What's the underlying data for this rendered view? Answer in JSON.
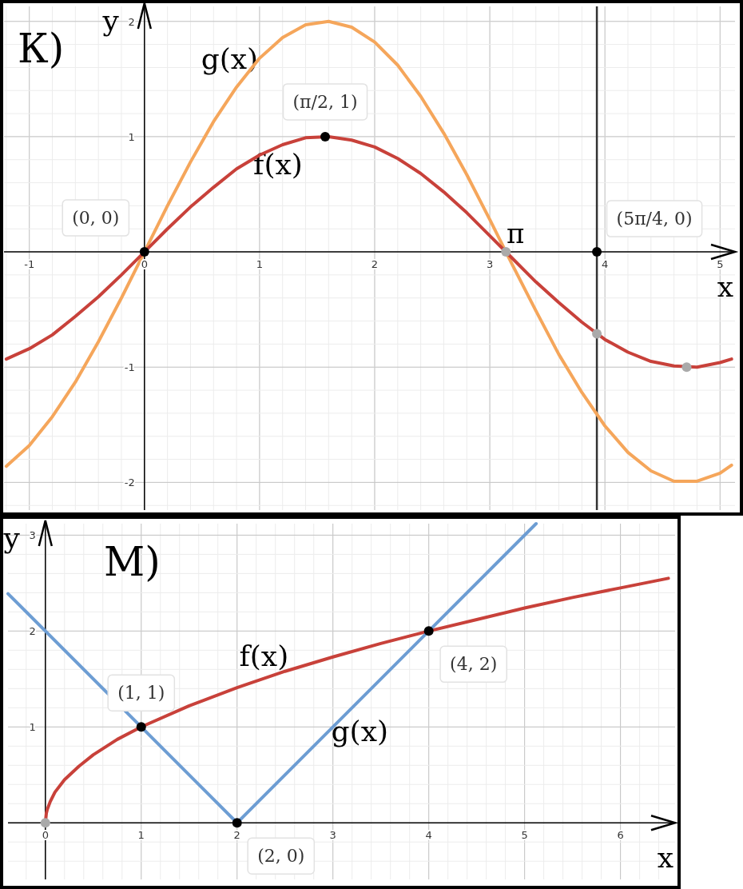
{
  "chart_data": [
    {
      "type": "line",
      "title": "К)",
      "xlabel": "x",
      "ylabel": "y",
      "xlim": [
        -1.22,
        5.13
      ],
      "ylim": [
        -2.24,
        2.13
      ],
      "xticks": [
        -1,
        0,
        1,
        2,
        3,
        4,
        5
      ],
      "yticks": [
        -2,
        -1,
        1,
        2
      ],
      "grid": true,
      "line_style": "solid",
      "x": [
        -1.2,
        -1.0,
        -0.8,
        -0.6,
        -0.4,
        -0.2,
        0,
        0.2,
        0.4,
        0.6,
        0.8,
        1.0,
        1.2,
        1.4,
        1.6,
        1.8,
        2.0,
        2.2,
        2.4,
        2.6,
        2.8,
        3.0,
        3.2,
        3.4,
        3.6,
        3.8,
        4.0,
        4.2,
        4.4,
        4.6,
        4.8,
        5.0,
        5.1
      ],
      "series": [
        {
          "name": "g(x)",
          "color": "#f5a65b",
          "values": [
            -1.86,
            -1.68,
            -1.43,
            -1.13,
            -0.78,
            -0.4,
            0,
            0.4,
            0.78,
            1.13,
            1.43,
            1.68,
            1.86,
            1.97,
            2.0,
            1.95,
            1.82,
            1.62,
            1.35,
            1.03,
            0.67,
            0.28,
            -0.12,
            -0.51,
            -0.89,
            -1.22,
            -1.51,
            -1.74,
            -1.9,
            -1.99,
            -1.99,
            -1.92,
            -1.85
          ]
        },
        {
          "name": "f(x)",
          "color": "#c8413a",
          "values": [
            -0.93,
            -0.84,
            -0.72,
            -0.56,
            -0.39,
            -0.2,
            0,
            0.2,
            0.39,
            0.56,
            0.72,
            0.84,
            0.93,
            0.99,
            1.0,
            0.97,
            0.91,
            0.81,
            0.68,
            0.52,
            0.34,
            0.14,
            -0.06,
            -0.26,
            -0.44,
            -0.61,
            -0.76,
            -0.87,
            -0.95,
            -0.99,
            -1.0,
            -0.96,
            -0.93
          ]
        },
        {
          "type": "scatter",
          "x": [
            0,
            1.57,
            3.93,
            3.14,
            3.93,
            4.71
          ],
          "values": [
            0,
            1,
            0,
            0,
            -0.71,
            -1
          ],
          "colors": [
            "#000000",
            "#000000",
            "#000000",
            "#aaaaaa",
            "#aaaaaa",
            "#aaaaaa"
          ]
        }
      ],
      "ref_lines": [
        {
          "axis": "x",
          "value": 3.93,
          "color": "#333333"
        }
      ],
      "annotations": [
        {
          "text": "(0, 0)",
          "x": 0,
          "y": 0
        },
        {
          "text": "(π/2, 1)",
          "x": 1.57,
          "y": 1
        },
        {
          "text": "(5π/4, 0)",
          "x": 3.93,
          "y": 0
        },
        {
          "text": "π",
          "x": 3.14,
          "y": 0
        }
      ]
    },
    {
      "type": "line",
      "title": "М)",
      "xlabel": "x",
      "ylabel": "y",
      "xlim": [
        -0.39,
        6.57
      ],
      "ylim": [
        -0.59,
        3.12
      ],
      "xticks": [
        0,
        1,
        2,
        3,
        4,
        5,
        6
      ],
      "yticks": [
        1,
        2,
        3
      ],
      "grid": true,
      "line_style": "solid",
      "series": [
        {
          "name": "f(x)",
          "color": "#c8413a",
          "x": [
            0,
            0.01,
            0.02,
            0.05,
            0.1,
            0.2,
            0.35,
            0.5,
            0.75,
            1,
            1.5,
            2,
            2.5,
            3,
            3.5,
            4,
            4.5,
            5,
            5.5,
            6,
            6.5
          ],
          "values": [
            0,
            0.1,
            0.14,
            0.22,
            0.32,
            0.45,
            0.59,
            0.71,
            0.87,
            1,
            1.22,
            1.41,
            1.58,
            1.73,
            1.87,
            2,
            2.12,
            2.24,
            2.35,
            2.45,
            2.55
          ]
        },
        {
          "name": "g(x)",
          "color": "#6d9dd3",
          "x": [
            -0.39,
            2,
            5.12
          ],
          "values": [
            2.39,
            0,
            3.12
          ]
        },
        {
          "type": "scatter",
          "x": [
            1,
            4,
            2,
            0
          ],
          "values": [
            1,
            2,
            0,
            0
          ],
          "colors": [
            "#000000",
            "#000000",
            "#000000",
            "#aaaaaa"
          ]
        }
      ],
      "annotations": [
        {
          "text": "(1, 1)",
          "x": 1,
          "y": 1
        },
        {
          "text": "(4, 2)",
          "x": 4,
          "y": 2
        },
        {
          "text": "(2, 0)",
          "x": 2,
          "y": 0
        }
      ]
    }
  ]
}
